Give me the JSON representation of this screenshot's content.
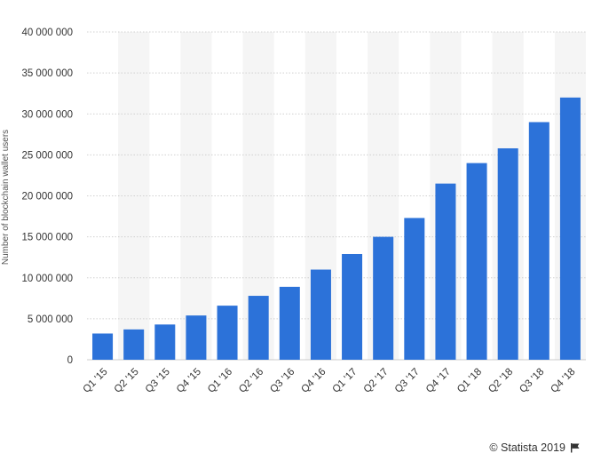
{
  "chart_data": {
    "type": "bar",
    "title": "",
    "xlabel": "",
    "ylabel": "Number of blockchain wallet users",
    "ylim": [
      0,
      40000000
    ],
    "yticks": [
      0,
      5000000,
      10000000,
      15000000,
      20000000,
      25000000,
      30000000,
      35000000,
      40000000
    ],
    "ytick_labels": [
      "0",
      "5 000 000",
      "10 000 000",
      "15 000 000",
      "20 000 000",
      "25 000 000",
      "30 000 000",
      "35 000 000",
      "40 000 000"
    ],
    "categories": [
      "Q1 '15",
      "Q2 '15",
      "Q3 '15",
      "Q4 '15",
      "Q1 '16",
      "Q2 '16",
      "Q3 '16",
      "Q4 '16",
      "Q1 '17",
      "Q2 '17",
      "Q3 '17",
      "Q4 '17",
      "Q1 '18",
      "Q2 '18",
      "Q3 '18",
      "Q4 '18"
    ],
    "values": [
      3200000,
      3700000,
      4300000,
      5400000,
      6600000,
      7800000,
      8900000,
      11000000,
      12900000,
      15000000,
      17300000,
      21500000,
      24000000,
      25800000,
      29000000,
      32000000
    ],
    "bar_color": "#2c72d9",
    "band_color": "#f5f5f5",
    "grid": true,
    "legend": "none"
  },
  "footer": {
    "credit": "© Statista 2019",
    "flag_icon": "flag-icon"
  }
}
